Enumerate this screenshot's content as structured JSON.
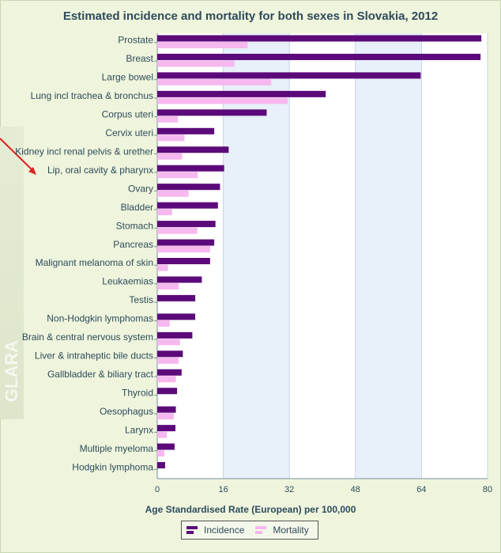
{
  "title": "Estimated incidence and mortality for both sexes in Slovakia, 2012",
  "watermark": "GLARA",
  "colors": {
    "incidence": "#5c0a7a",
    "mortality": "#f6b8ee",
    "plot_bg": "#ffffff",
    "band_bg": "#e8f0fa",
    "arrow": "#e02020"
  },
  "chart_data": {
    "type": "bar",
    "orientation": "horizontal",
    "title": "Estimated incidence and mortality for both sexes in Slovakia, 2012",
    "xlabel": "Age Standardised Rate (European) per 100,000",
    "ylabel": "",
    "xlim": [
      0,
      80
    ],
    "xticks": [
      0,
      16,
      32,
      48,
      64,
      80
    ],
    "grid": true,
    "legend_position": "bottom",
    "categories": [
      "Prostate",
      "Breast",
      "Large bowel",
      "Lung incl trachea & bronchus",
      "Corpus uteri",
      "Cervix uteri",
      "Kidney incl renal pelvis & urether",
      "Lip, oral cavity & pharynx",
      "Ovary",
      "Bladder",
      "Stomach",
      "Pancreas",
      "Malignant melanoma of skin",
      "Leukaemias",
      "Testis",
      "Non-Hodgkin lymphomas",
      "Brain & central nervous system",
      "Liver & intraheptic bile ducts",
      "Gallbladder & biliary tract",
      "Thyroid",
      "Oesophagus",
      "Larynx",
      "Multiple myeloma",
      "Hodgkin lymphoma"
    ],
    "series": [
      {
        "name": "Incidence",
        "values": [
          78.5,
          78.3,
          63.8,
          40.8,
          26.5,
          13.8,
          17.3,
          16.2,
          15.2,
          14.7,
          14.1,
          13.8,
          12.8,
          10.8,
          9.2,
          9.2,
          8.5,
          6.2,
          5.9,
          4.8,
          4.5,
          4.4,
          4.2,
          1.9
        ]
      },
      {
        "name": "Mortality",
        "values": [
          21.9,
          18.7,
          27.6,
          31.6,
          5.0,
          6.6,
          6.0,
          9.8,
          7.6,
          3.6,
          9.7,
          12.8,
          2.6,
          5.2,
          0.0,
          3.0,
          5.5,
          5.2,
          4.5,
          0.0,
          4.0,
          2.3,
          1.7,
          0.0
        ]
      }
    ]
  }
}
